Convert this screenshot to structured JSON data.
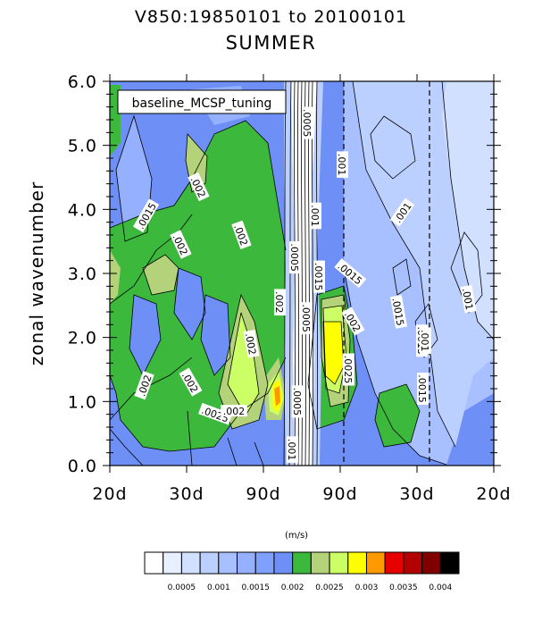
{
  "chart_data": {
    "type": "contour",
    "title": "V850:19850101 to 20100101",
    "subtitle": "SUMMER",
    "ylabel": "zonal wavenumber",
    "xlabel": "",
    "y_ticks": [
      "0.0",
      "1.0",
      "2.0",
      "3.0",
      "4.0",
      "5.0",
      "6.0"
    ],
    "x_ticks": [
      "20d",
      "30d",
      "90d",
      "90d",
      "30d",
      "20d"
    ],
    "ylim": [
      0,
      6
    ],
    "legend_label": "baseline_MCSP_tuning",
    "colorbar": {
      "units": "(m/s)",
      "labels": [
        "0.0005",
        "0.001",
        "0.0015",
        "0.002",
        "0.0025",
        "0.003",
        "0.0035",
        "0.004"
      ],
      "colors": [
        "#ffffff",
        "#e8f0ff",
        "#d2e0ff",
        "#bcd0ff",
        "#a8c0ff",
        "#94b0ff",
        "#80a0ff",
        "#6e8ff5",
        "#3cb83c",
        "#b4d27a",
        "#ccff66",
        "#ffff00",
        "#ff9900",
        "#e60000",
        "#b30000",
        "#800000",
        "#000000"
      ]
    },
    "contour_labels": [
      {
        "text": ".0005",
        "wave": 5.35
      },
      {
        "text": ".002",
        "wave": 4.35
      },
      {
        "text": ".0015",
        "wave": 3.9
      },
      {
        "text": ".002",
        "wave": 3.6
      },
      {
        "text": ".002",
        "wave": 3.45
      },
      {
        "text": ".001",
        "wave": 4.7
      },
      {
        "text": ".001",
        "wave": 3.95
      },
      {
        "text": ".001",
        "wave": 3.9
      },
      {
        "text": ".0005",
        "wave": 3.25
      },
      {
        "text": ".0015",
        "wave": 2.95
      },
      {
        "text": ".0015",
        "wave": 3.0
      },
      {
        "text": ".002",
        "wave": 2.55
      },
      {
        "text": ".001",
        "wave": 2.6
      },
      {
        "text": ".0005",
        "wave": 2.3
      },
      {
        "text": ".0015",
        "wave": 2.4
      },
      {
        "text": ".002",
        "wave": 2.25
      },
      {
        "text": ".002",
        "wave": 1.9
      },
      {
        "text": ".0015",
        "wave": 1.95
      },
      {
        "text": ".001",
        "wave": 1.95
      },
      {
        "text": ".002",
        "wave": 1.25
      },
      {
        "text": ".002",
        "wave": 1.3
      },
      {
        "text": ".0025",
        "wave": 1.5
      },
      {
        "text": ".0015",
        "wave": 1.2
      },
      {
        "text": ".0005",
        "wave": 1.0
      },
      {
        "text": ".0025",
        "wave": 0.8
      },
      {
        "text": ".002",
        "wave": 0.85
      },
      {
        "text": ".001",
        "wave": 0.25
      }
    ]
  }
}
